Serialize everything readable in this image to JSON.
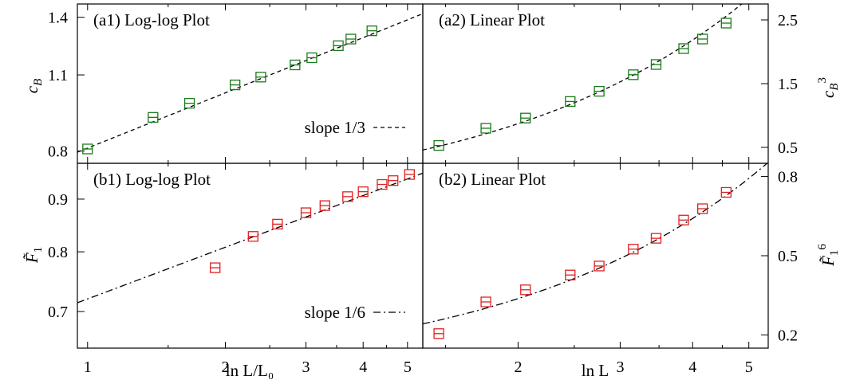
{
  "chart_data": [
    {
      "type": "scatter",
      "panel": "a1",
      "title": "(a1) Log-log Plot",
      "xscale": "log",
      "yscale": "log",
      "xlim": [
        0.95,
        5.4
      ],
      "ylim": [
        0.76,
        1.48
      ],
      "yticks": [
        0.8,
        1.1,
        1.4
      ],
      "ytick_labels": [
        "0.8",
        "1.1",
        "1.4"
      ],
      "ylabel_main": "c",
      "ylabel_sub": "B",
      "color": "#1a7a1a",
      "x": [
        1.0,
        1.39,
        1.67,
        2.1,
        2.39,
        2.84,
        3.09,
        3.53,
        3.76,
        4.18
      ],
      "y": [
        0.807,
        0.921,
        0.977,
        1.055,
        1.09,
        1.147,
        1.182,
        1.243,
        1.278,
        1.323
      ],
      "fit": {
        "type": "power",
        "exponent": 0.3333,
        "amplitude": 0.81,
        "style": "dashed"
      },
      "legend": {
        "text": "slope 1/3",
        "position": "bottom-right"
      }
    },
    {
      "type": "scatter",
      "panel": "a2",
      "title": "(a2) Linear Plot",
      "xscale": "log",
      "yscale": "linear",
      "xlim": [
        1.37,
        5.4
      ],
      "ylim": [
        0.25,
        2.75
      ],
      "yticks": [
        0.5,
        1.5,
        2.5
      ],
      "ytick_labels": [
        "0.5",
        "1.5",
        "2.5"
      ],
      "ylabel_main": "c",
      "ylabel_sub": "B",
      "ylabel_sup": "3",
      "color": "#1a7a1a",
      "x": [
        1.46,
        1.76,
        2.06,
        2.46,
        2.76,
        3.16,
        3.46,
        3.86,
        4.16,
        4.57
      ],
      "y": [
        0.53,
        0.8,
        0.96,
        1.22,
        1.38,
        1.64,
        1.8,
        2.05,
        2.2,
        2.45
      ],
      "fit": {
        "type": "linear",
        "slope": 0.6561,
        "intercept": -0.44,
        "style": "dashed"
      }
    },
    {
      "type": "scatter",
      "panel": "b1",
      "title": "(b1) Log-log Plot",
      "xscale": "log",
      "yscale": "log",
      "xlim": [
        0.95,
        5.4
      ],
      "ylim": [
        0.645,
        0.975
      ],
      "yticks": [
        0.7,
        0.8,
        0.9
      ],
      "ytick_labels": [
        "0.7",
        "0.8",
        "0.9"
      ],
      "xticks": [
        1,
        2,
        3,
        4,
        5
      ],
      "xtick_labels": [
        "1",
        "2",
        "3",
        "4",
        "5"
      ],
      "xlabel": "ln L/L₀",
      "ylabel_main": "F̃",
      "ylabel_sub": "1",
      "color": "#e02020",
      "x": [
        1.9,
        2.3,
        2.6,
        3.0,
        3.3,
        3.7,
        4.0,
        4.4,
        4.65,
        5.05
      ],
      "y": [
        0.772,
        0.828,
        0.851,
        0.873,
        0.887,
        0.905,
        0.915,
        0.93,
        0.938,
        0.951
      ],
      "fit": {
        "type": "power",
        "exponent": 0.1667,
        "amplitude": 0.72,
        "style": "dash-dot"
      },
      "legend": {
        "text": "slope 1/6",
        "position": "bottom-right"
      }
    },
    {
      "type": "scatter",
      "panel": "b2",
      "title": "(b2) Linear Plot",
      "xscale": "log",
      "yscale": "linear",
      "xlim": [
        1.37,
        5.4
      ],
      "ylim": [
        0.15,
        0.85
      ],
      "yticks": [
        0.2,
        0.5,
        0.8
      ],
      "ytick_labels": [
        "0.2",
        "0.5",
        "0.8"
      ],
      "xticks": [
        2,
        3,
        4,
        5
      ],
      "xtick_labels": [
        "2",
        "3",
        "4",
        "5"
      ],
      "xlabel": "ln L",
      "ylabel_main": "F̃",
      "ylabel_sub": "1",
      "ylabel_sup": "6",
      "color": "#e02020",
      "x": [
        1.46,
        1.76,
        2.06,
        2.46,
        2.76,
        3.16,
        3.46,
        3.86,
        4.16,
        4.57
      ],
      "y": [
        0.205,
        0.325,
        0.371,
        0.427,
        0.461,
        0.525,
        0.566,
        0.635,
        0.678,
        0.74
      ],
      "fit": {
        "type": "linear",
        "slope": 0.1518,
        "intercept": 0.034,
        "style": "dash-dot"
      }
    }
  ]
}
